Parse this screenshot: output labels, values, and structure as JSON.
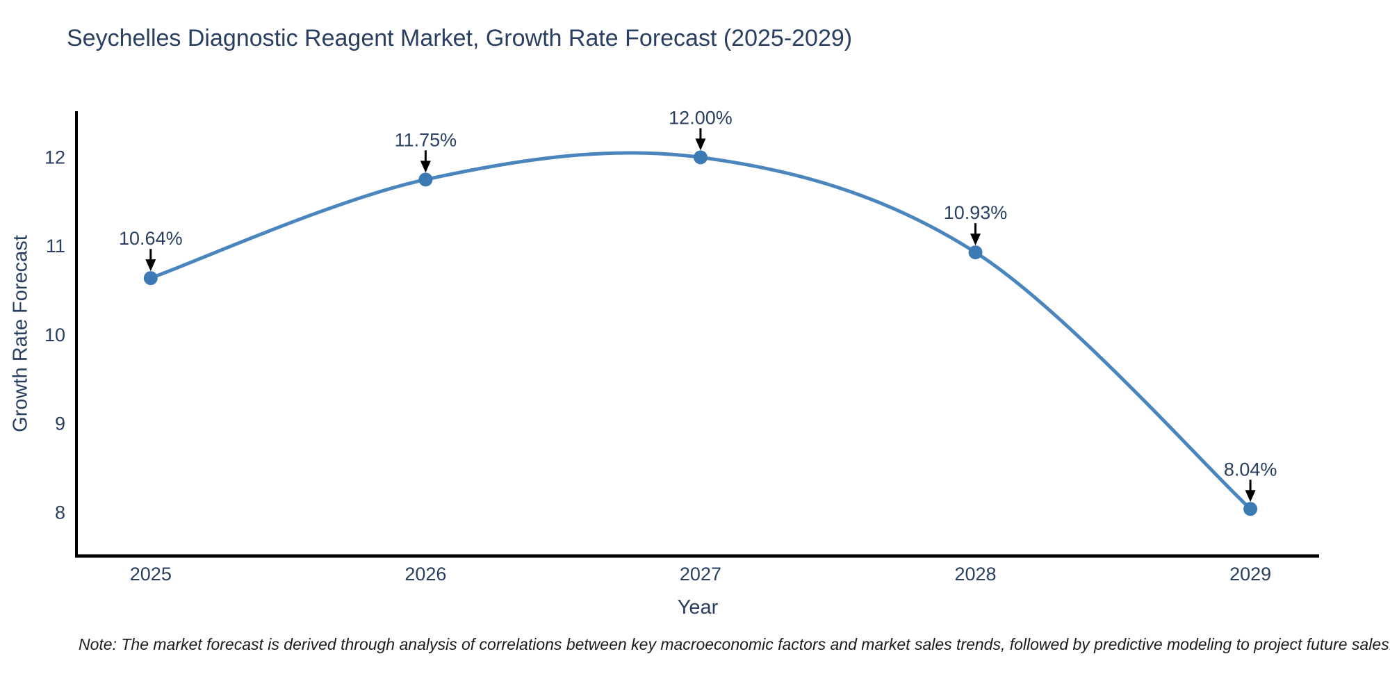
{
  "chart": {
    "title": "Seychelles Diagnostic Reagent Market, Growth Rate Forecast (2025-2029)",
    "x_axis_title": "Year",
    "y_axis_title": "Growth Rate Forecast",
    "note": "Note: The market forecast is derived through analysis of correlations between key macroeconomic factors and market sales trends, followed by predictive modeling to project future sales."
  },
  "chart_data": {
    "type": "line",
    "title": "Seychelles Diagnostic Reagent Market, Growth Rate Forecast (2025-2029)",
    "xlabel": "Year",
    "ylabel": "Growth Rate Forecast",
    "x": [
      2025,
      2026,
      2027,
      2028,
      2029
    ],
    "values": [
      10.64,
      11.75,
      12.0,
      10.93,
      8.04
    ],
    "point_labels": [
      "10.64%",
      "11.75%",
      "12.00%",
      "10.93%",
      "8.04%"
    ],
    "series_name": "Growth Rate Forecast",
    "line_shape": "spline",
    "grid": false,
    "legend_position": "none",
    "yticks": [
      8,
      9,
      10,
      11,
      12
    ],
    "xticks": [
      2025,
      2026,
      2027,
      2028,
      2029
    ],
    "xlim": [
      2024.73,
      2029.25
    ],
    "ylim": [
      7.51,
      12.52
    ],
    "colors": {
      "line": "#4a86bd",
      "marker": "#3c7ab3",
      "axis": "#000000",
      "text": "#2a3f5f",
      "annotation_arrow": "#000000",
      "background": "#ffffff"
    }
  }
}
